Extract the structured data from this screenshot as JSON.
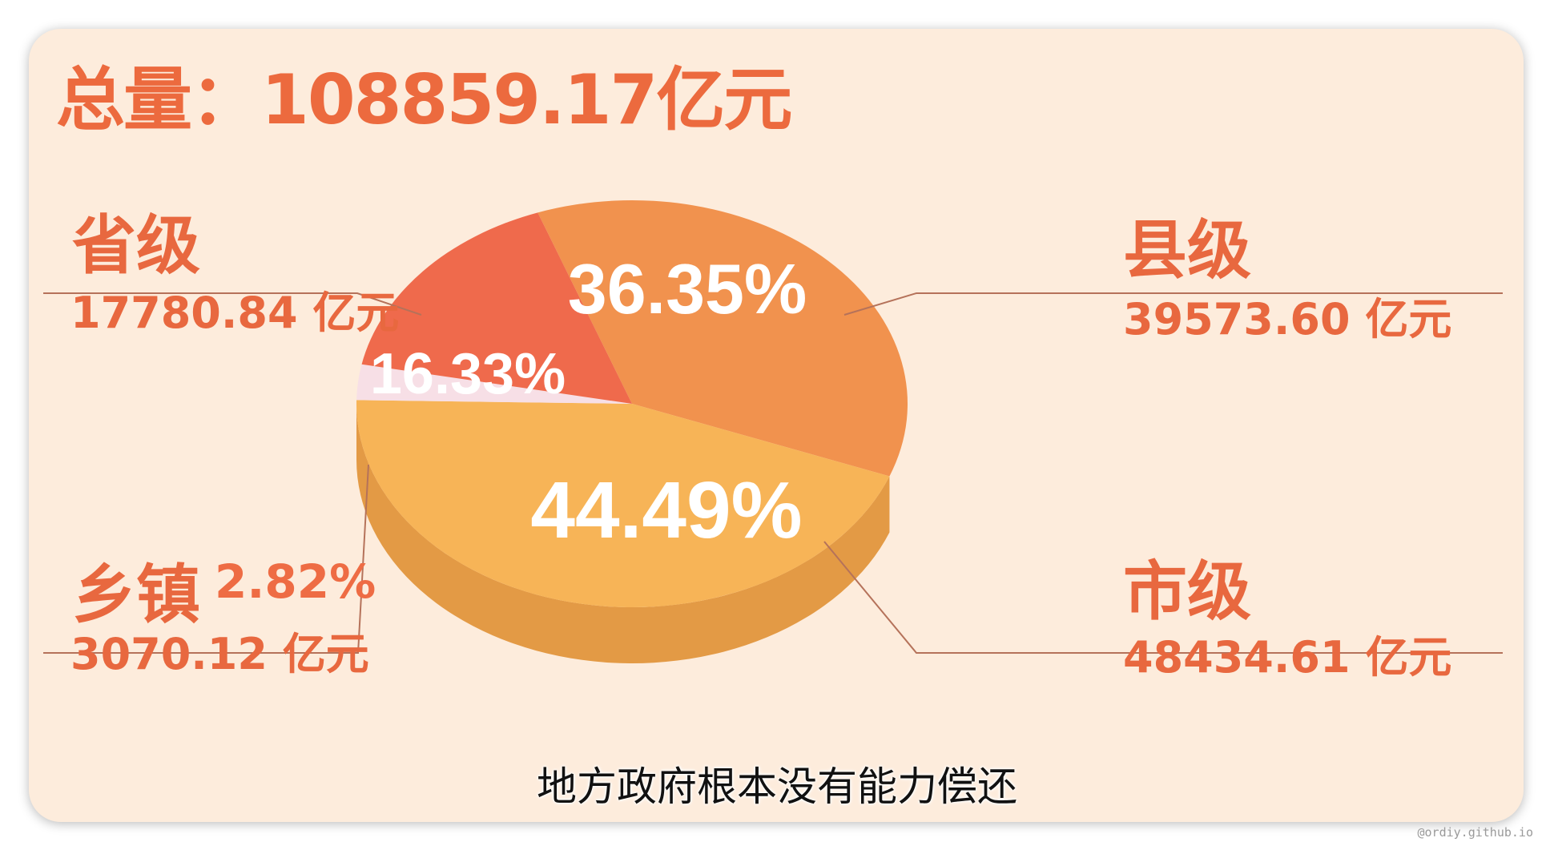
{
  "header": {
    "total_label": "总量：",
    "total_value": "108859.17亿元"
  },
  "subtitle": "地方政府根本没有能力偿还",
  "watermark": "@ordiy.github.io",
  "colors": {
    "background": "#fdecdc",
    "label": "#e8683f",
    "province": "#ef6a4c",
    "county": "#f1924e",
    "city": "#f7b457",
    "city_side": "#e39a45",
    "township": "#f7dfe6"
  },
  "chart_data": {
    "type": "pie",
    "title": "总量：108859.17亿元",
    "unit": "亿元",
    "total": 108859.17,
    "slices": [
      {
        "name": "省级",
        "value": 17780.84,
        "value_label": "17780.84 亿元",
        "percent": 16.33,
        "percent_label": "16.33%"
      },
      {
        "name": "县级",
        "value": 39573.6,
        "value_label": "39573.60 亿元",
        "percent": 36.35,
        "percent_label": "36.35%"
      },
      {
        "name": "市级",
        "value": 48434.61,
        "value_label": "48434.61 亿元",
        "percent": 44.49,
        "percent_label": "44.49%"
      },
      {
        "name": "乡镇",
        "value": 3070.12,
        "value_label": "3070.12 亿元",
        "percent": 2.82,
        "percent_label": "2.82%"
      }
    ]
  }
}
